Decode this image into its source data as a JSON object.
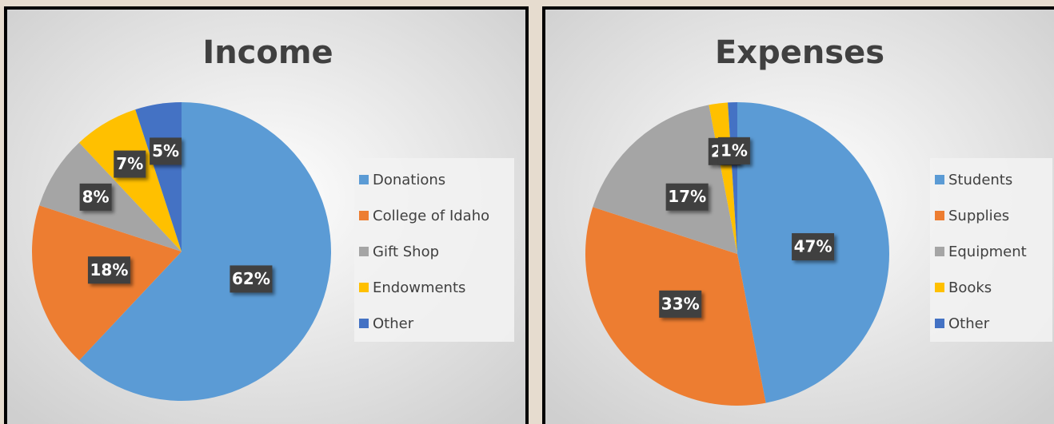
{
  "chart_data": [
    {
      "type": "pie",
      "title": "Income",
      "categories": [
        "Donations",
        "College of Idaho",
        "Gift Shop",
        "Endowments",
        "Other"
      ],
      "values": [
        62,
        18,
        8,
        7,
        5
      ],
      "value_labels": [
        "62%",
        "18%",
        "8%",
        "7%",
        "5%"
      ],
      "colors": [
        "#5b9bd5",
        "#ed7d31",
        "#a5a5a5",
        "#ffc000",
        "#4472c4"
      ],
      "legend": "right"
    },
    {
      "type": "pie",
      "title": "Expenses",
      "categories": [
        "Students",
        "Supplies",
        "Equipment",
        "Books",
        "Other"
      ],
      "values": [
        47,
        33,
        17,
        2,
        1
      ],
      "value_labels": [
        "47%",
        "33%",
        "17%",
        "2%",
        "1%"
      ],
      "colors": [
        "#5b9bd5",
        "#ed7d31",
        "#a5a5a5",
        "#ffc000",
        "#4472c4"
      ],
      "legend": "right"
    }
  ]
}
